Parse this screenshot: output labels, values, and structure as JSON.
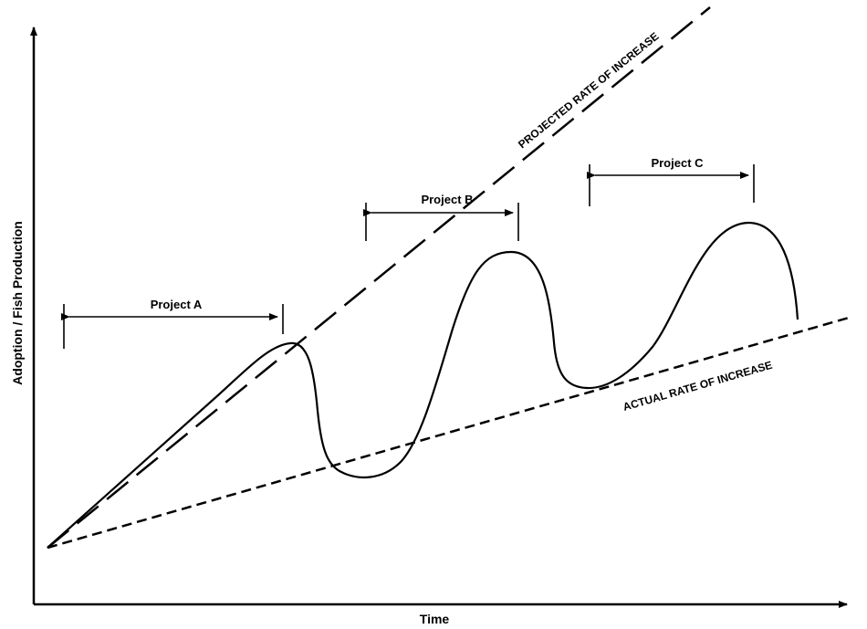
{
  "axes": {
    "x_label": "Time",
    "y_label": "Adoption / Fish Production"
  },
  "lines": {
    "projected_label": "PROJECTED RATE OF INCREASE",
    "actual_label": "ACTUAL RATE OF INCREASE"
  },
  "projects": [
    {
      "label": "Project A"
    },
    {
      "label": "Project B"
    },
    {
      "label": "Project C"
    }
  ]
}
